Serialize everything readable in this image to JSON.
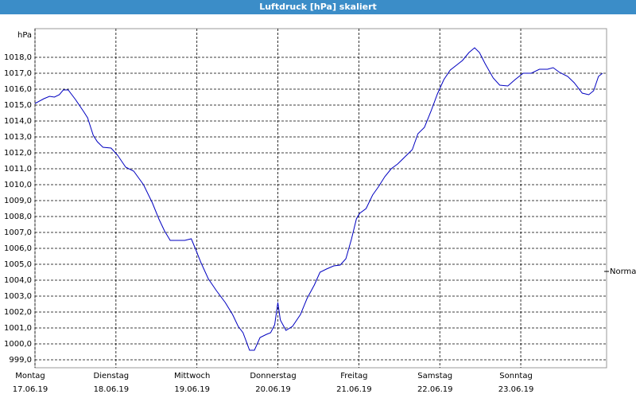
{
  "chart_data": {
    "type": "line",
    "title": "Luftdruck [hPa] skaliert",
    "y_unit": "hPa",
    "xlim": [
      0,
      7.06
    ],
    "ylim": [
      998.5,
      1019.8
    ],
    "xticks": [
      {
        "value": 0,
        "label": "Montag",
        "date": "17.06.19"
      },
      {
        "value": 1,
        "label": "Dienstag",
        "date": "18.06.19"
      },
      {
        "value": 2,
        "label": "Mittwoch",
        "date": "19.06.19"
      },
      {
        "value": 3,
        "label": "Donnerstag",
        "date": "20.06.19"
      },
      {
        "value": 4,
        "label": "Freitag",
        "date": "21.06.19"
      },
      {
        "value": 5,
        "label": "Samstag",
        "date": "22.06.19"
      },
      {
        "value": 6,
        "label": "Sonntag",
        "date": "23.06.19"
      }
    ],
    "yticks": [
      {
        "value": 999,
        "label": "999,0"
      },
      {
        "value": 1000,
        "label": "1000,0"
      },
      {
        "value": 1001,
        "label": "1001,0"
      },
      {
        "value": 1002,
        "label": "1002,0"
      },
      {
        "value": 1003,
        "label": "1003,0"
      },
      {
        "value": 1004,
        "label": "1004,0"
      },
      {
        "value": 1005,
        "label": "1005,0"
      },
      {
        "value": 1006,
        "label": "1006,0"
      },
      {
        "value": 1007,
        "label": "1007,0"
      },
      {
        "value": 1008,
        "label": "1008,0"
      },
      {
        "value": 1009,
        "label": "1009,0"
      },
      {
        "value": 1010,
        "label": "1010,0"
      },
      {
        "value": 1011,
        "label": "1011,0"
      },
      {
        "value": 1012,
        "label": "1012,0"
      },
      {
        "value": 1013,
        "label": "1013,0"
      },
      {
        "value": 1014,
        "label": "1014,0"
      },
      {
        "value": 1015,
        "label": "1015,0"
      },
      {
        "value": 1016,
        "label": "1016,0"
      },
      {
        "value": 1017,
        "label": "1017,0"
      },
      {
        "value": 1018,
        "label": "1018,0"
      }
    ],
    "grid": true,
    "reference": {
      "value": 1004.55,
      "label": "Normal"
    },
    "color": "#0000c0",
    "x": [
      0,
      0.11,
      0.18,
      0.24,
      0.3,
      0.35,
      0.41,
      0.5,
      0.6,
      0.65,
      0.72,
      0.77,
      0.84,
      0.94,
      1.02,
      1.12,
      1.22,
      1.34,
      1.45,
      1.53,
      1.6,
      1.67,
      1.75,
      1.85,
      1.93,
      1.98,
      2.05,
      2.14,
      2.24,
      2.35,
      2.44,
      2.51,
      2.57,
      2.65,
      2.71,
      2.78,
      2.86,
      2.91,
      2.96,
      3.0,
      3.03,
      3.1,
      3.18,
      3.28,
      3.36,
      3.45,
      3.52,
      3.6,
      3.69,
      3.77,
      3.84,
      3.91,
      3.97,
      4.01,
      4.09,
      4.17,
      4.24,
      4.32,
      4.4,
      4.48,
      4.58,
      4.66,
      4.73,
      4.81,
      4.89,
      4.97,
      5.05,
      5.13,
      5.23,
      5.28,
      5.36,
      5.43,
      5.49,
      5.56,
      5.66,
      5.74,
      5.84,
      5.93,
      6.03,
      6.13,
      6.23,
      6.33,
      6.4,
      6.48,
      6.58,
      6.66,
      6.76,
      6.84,
      6.9,
      6.96,
      7.01
    ],
    "values": [
      1015.1,
      1015.4,
      1015.55,
      1015.5,
      1015.65,
      1015.95,
      1015.95,
      1015.35,
      1014.6,
      1014.2,
      1013.1,
      1012.7,
      1012.35,
      1012.3,
      1011.85,
      1011.1,
      1010.85,
      1010.0,
      1008.85,
      1007.85,
      1007.1,
      1006.5,
      1006.5,
      1006.5,
      1006.6,
      1006.0,
      1005.1,
      1004.1,
      1003.35,
      1002.6,
      1001.85,
      1001.1,
      1000.7,
      999.6,
      999.6,
      1000.4,
      1000.6,
      1000.7,
      1001.2,
      1002.6,
      1001.5,
      1000.85,
      1001.1,
      1001.85,
      1002.85,
      1003.7,
      1004.5,
      1004.7,
      1004.9,
      1004.95,
      1005.35,
      1006.6,
      1007.85,
      1008.2,
      1008.5,
      1009.35,
      1009.85,
      1010.5,
      1011.0,
      1011.3,
      1011.8,
      1012.2,
      1013.2,
      1013.6,
      1014.6,
      1015.7,
      1016.6,
      1017.2,
      1017.6,
      1017.8,
      1018.3,
      1018.6,
      1018.3,
      1017.6,
      1016.7,
      1016.25,
      1016.2,
      1016.6,
      1017.0,
      1017.0,
      1017.25,
      1017.25,
      1017.35,
      1017.05,
      1016.8,
      1016.4,
      1015.75,
      1015.65,
      1015.9,
      1016.8,
      1017.0
    ]
  }
}
